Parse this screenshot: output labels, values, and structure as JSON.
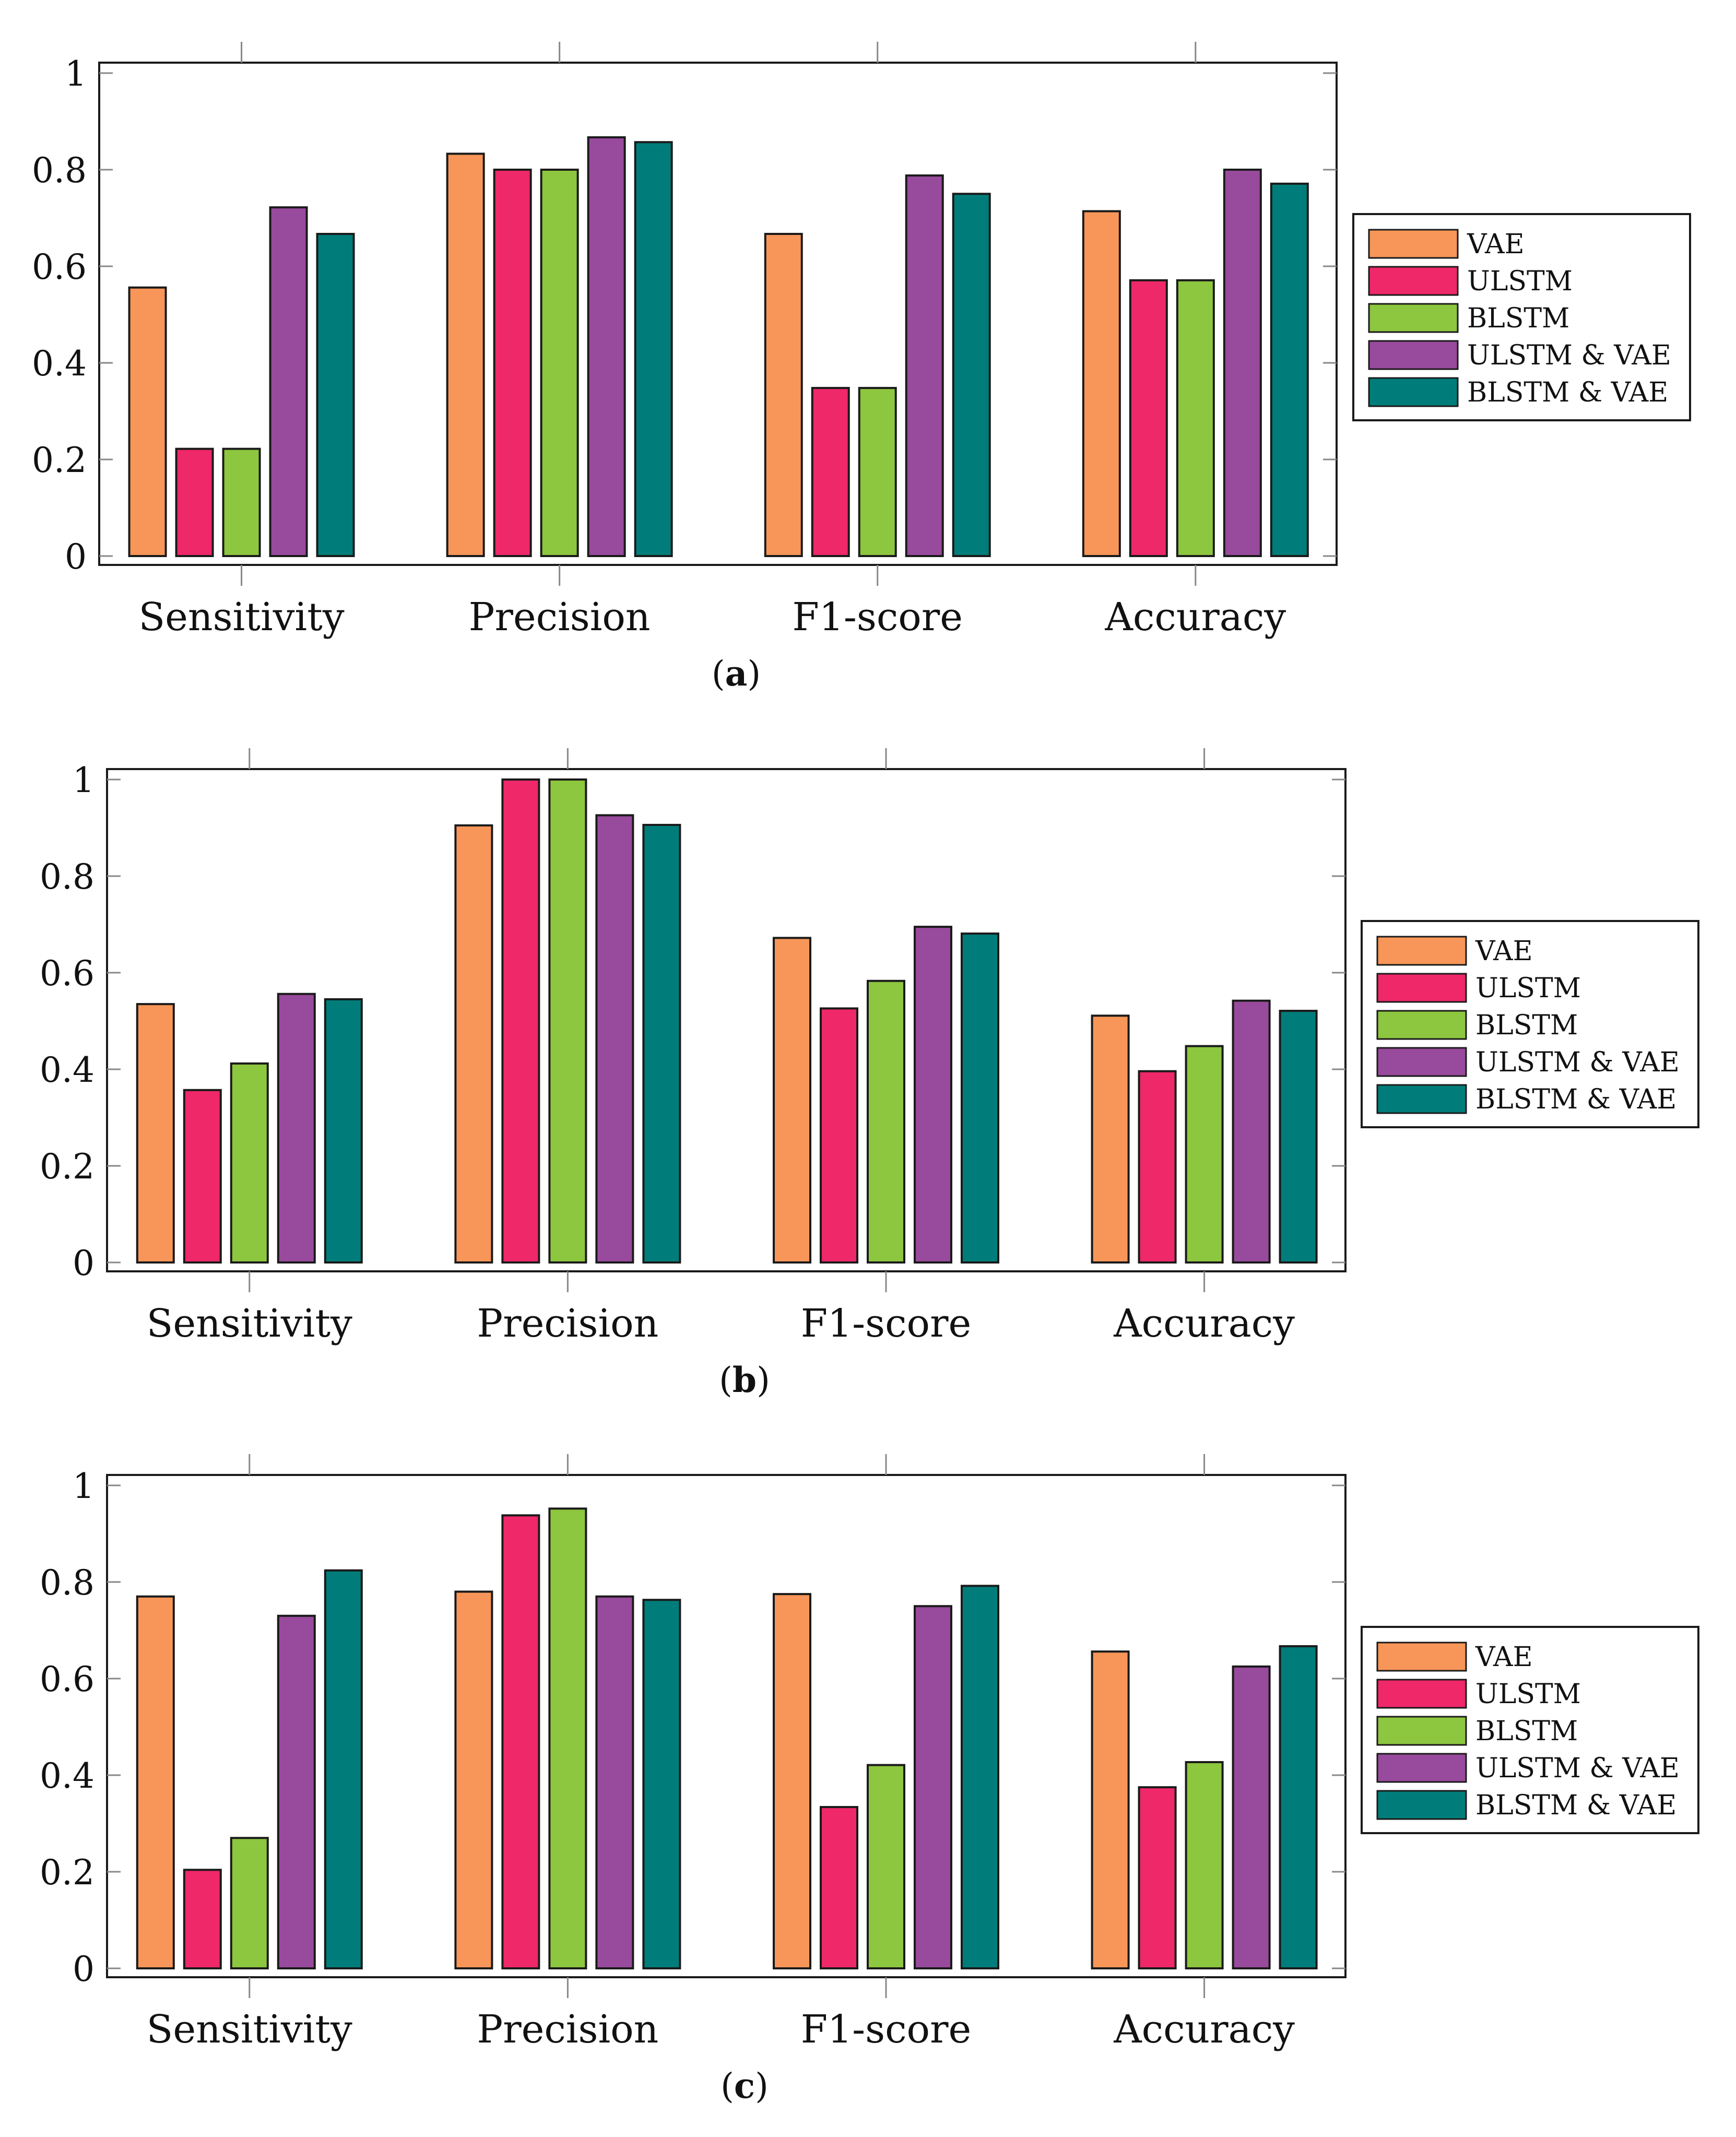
{
  "chart_data": [
    {
      "type": "bar",
      "caption": "(a)",
      "caption_letter": "a",
      "categories": [
        "Sensitivity",
        "Precision",
        "F1-score",
        "Accuracy"
      ],
      "ylim": [
        0,
        1
      ],
      "yticks": [
        "0",
        "0.2",
        "0.4",
        "0.6",
        "0.8",
        "1"
      ],
      "legend_position": "right",
      "series": [
        {
          "name": "VAE",
          "color": "#F79658",
          "values": [
            0.556,
            0.833,
            0.667,
            0.714
          ]
        },
        {
          "name": "ULSTM",
          "color": "#EE2869",
          "values": [
            0.222,
            0.8,
            0.348,
            0.571
          ]
        },
        {
          "name": "BLSTM",
          "color": "#8DC63F",
          "values": [
            0.222,
            0.8,
            0.348,
            0.571
          ]
        },
        {
          "name": "ULSTM & VAE",
          "color": "#984A9C",
          "values": [
            0.722,
            0.867,
            0.788,
            0.8
          ]
        },
        {
          "name": "BLSTM & VAE",
          "color": "#007D7A",
          "values": [
            0.667,
            0.857,
            0.75,
            0.771
          ]
        }
      ]
    },
    {
      "type": "bar",
      "caption": "(b)",
      "caption_letter": "b",
      "categories": [
        "Sensitivity",
        "Precision",
        "F1-score",
        "Accuracy"
      ],
      "ylim": [
        0,
        1
      ],
      "yticks": [
        "0",
        "0.2",
        "0.4",
        "0.6",
        "0.8",
        "1"
      ],
      "legend_position": "right",
      "series": [
        {
          "name": "VAE",
          "color": "#F79658",
          "values": [
            0.535,
            0.905,
            0.672,
            0.511
          ]
        },
        {
          "name": "ULSTM",
          "color": "#EE2869",
          "values": [
            0.357,
            1.0,
            0.526,
            0.396
          ]
        },
        {
          "name": "BLSTM",
          "color": "#8DC63F",
          "values": [
            0.412,
            1.0,
            0.583,
            0.448
          ]
        },
        {
          "name": "ULSTM & VAE",
          "color": "#984A9C",
          "values": [
            0.556,
            0.926,
            0.695,
            0.542
          ]
        },
        {
          "name": "BLSTM & VAE",
          "color": "#007D7A",
          "values": [
            0.545,
            0.906,
            0.681,
            0.521
          ]
        }
      ]
    },
    {
      "type": "bar",
      "caption": "(c)",
      "caption_letter": "c",
      "categories": [
        "Sensitivity",
        "Precision",
        "F1-score",
        "Accuracy"
      ],
      "ylim": [
        0,
        1
      ],
      "yticks": [
        "0",
        "0.2",
        "0.4",
        "0.6",
        "0.8",
        "1"
      ],
      "legend_position": "right",
      "series": [
        {
          "name": "VAE",
          "color": "#F79658",
          "values": [
            0.77,
            0.78,
            0.775,
            0.656
          ]
        },
        {
          "name": "ULSTM",
          "color": "#EE2869",
          "values": [
            0.204,
            0.938,
            0.334,
            0.375
          ]
        },
        {
          "name": "BLSTM",
          "color": "#8DC63F",
          "values": [
            0.27,
            0.952,
            0.421,
            0.427
          ]
        },
        {
          "name": "ULSTM & VAE",
          "color": "#984A9C",
          "values": [
            0.73,
            0.77,
            0.75,
            0.625
          ]
        },
        {
          "name": "BLSTM & VAE",
          "color": "#007D7A",
          "values": [
            0.824,
            0.763,
            0.792,
            0.667
          ]
        }
      ]
    }
  ]
}
